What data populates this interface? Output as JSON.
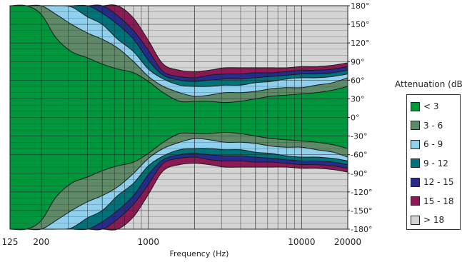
{
  "chart_data": {
    "type": "heatmap",
    "title": "",
    "xlabel": "Frequency (Hz)",
    "ylabel": "",
    "x_scale": "log",
    "xlim": [
      125,
      20000
    ],
    "ylim": [
      -180,
      180
    ],
    "x_ticks": [
      "125",
      "200",
      "1000",
      "10000",
      "20000"
    ],
    "y_ticks": [
      "180°",
      "150°",
      "120°",
      "90°",
      "60°",
      "30°",
      "0°",
      "-30°",
      "-60°",
      "-90°",
      "-120°",
      "-150°",
      "-180°"
    ],
    "legend_title": "Attenuation (dB)",
    "legend_placement": "right",
    "levels": [
      {
        "label": "< 3",
        "color": "#00963c"
      },
      {
        "label": "3 - 6",
        "color": "#5f8a68"
      },
      {
        "label": "6 - 9",
        "color": "#8fd0ee"
      },
      {
        "label": "9 - 12",
        "color": "#00737a"
      },
      {
        "label": "12 - 15",
        "color": "#262c8e"
      },
      {
        "label": "15 - 18",
        "color": "#8e1a55"
      },
      {
        "label": "> 18",
        "color": "#d4d4d4"
      }
    ],
    "frequencies": [
      125,
      160,
      200,
      250,
      315,
      400,
      500,
      630,
      800,
      1000,
      1250,
      1600,
      2000,
      2500,
      3150,
      4000,
      5000,
      6300,
      8000,
      10000,
      12500,
      16000,
      20000
    ],
    "contour_angles_deg": {
      "lt3": [
        180,
        180,
        166,
        128,
        106,
        96,
        86,
        78,
        72,
        58,
        40,
        26,
        26,
        26,
        24,
        26,
        30,
        34,
        36,
        38,
        40,
        44,
        50
      ],
      "lt6": [
        180,
        180,
        180,
        166,
        150,
        136,
        126,
        112,
        90,
        66,
        50,
        40,
        34,
        36,
        40,
        40,
        42,
        46,
        48,
        48,
        52,
        56,
        64
      ],
      "lt9": [
        180,
        180,
        180,
        180,
        178,
        162,
        150,
        126,
        106,
        78,
        62,
        52,
        50,
        50,
        52,
        52,
        56,
        58,
        62,
        64,
        64,
        66,
        70
      ],
      "lt12": [
        180,
        180,
        180,
        180,
        180,
        180,
        168,
        150,
        126,
        92,
        68,
        60,
        58,
        60,
        62,
        62,
        64,
        66,
        68,
        70,
        70,
        72,
        76
      ],
      "lt15": [
        180,
        180,
        180,
        180,
        180,
        180,
        180,
        164,
        140,
        108,
        74,
        66,
        64,
        68,
        70,
        70,
        72,
        72,
        74,
        76,
        76,
        78,
        82
      ],
      "lt18": [
        180,
        180,
        180,
        180,
        180,
        180,
        180,
        180,
        160,
        124,
        86,
        76,
        74,
        76,
        80,
        80,
        80,
        80,
        80,
        82,
        82,
        84,
        88
      ]
    }
  }
}
